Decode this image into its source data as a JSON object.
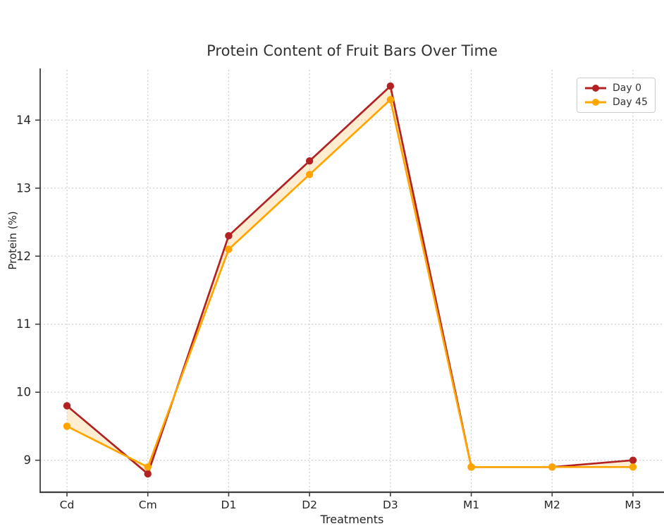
{
  "chart_data": {
    "type": "line",
    "title": "Protein Content of Fruit Bars Over Time",
    "xlabel": "Treatments",
    "ylabel": "Protein (%)",
    "categories": [
      "Cd",
      "Cm",
      "D1",
      "D2",
      "D3",
      "M1",
      "M2",
      "M3"
    ],
    "series": [
      {
        "name": "Day 0",
        "color": "#B22222",
        "values": [
          9.8,
          8.8,
          12.3,
          13.4,
          14.5,
          8.9,
          8.9,
          9.0
        ]
      },
      {
        "name": "Day 45",
        "color": "#FFA500",
        "values": [
          9.5,
          8.9,
          12.1,
          13.2,
          14.3,
          8.9,
          8.9,
          8.9
        ]
      }
    ],
    "yticks": [
      9,
      10,
      11,
      12,
      13,
      14
    ],
    "ylim": [
      8.53,
      14.76
    ],
    "fill_between_series": true,
    "fill_color": "rgba(255,185,70,0.25)",
    "grid": "dashed",
    "grid_color": "#cfcfcf",
    "spine_color": "#3f3f3f",
    "tick_text_color": "#262626",
    "legend_position": "top-right",
    "legend_labels": [
      "Day 0",
      "Day 45"
    ]
  }
}
